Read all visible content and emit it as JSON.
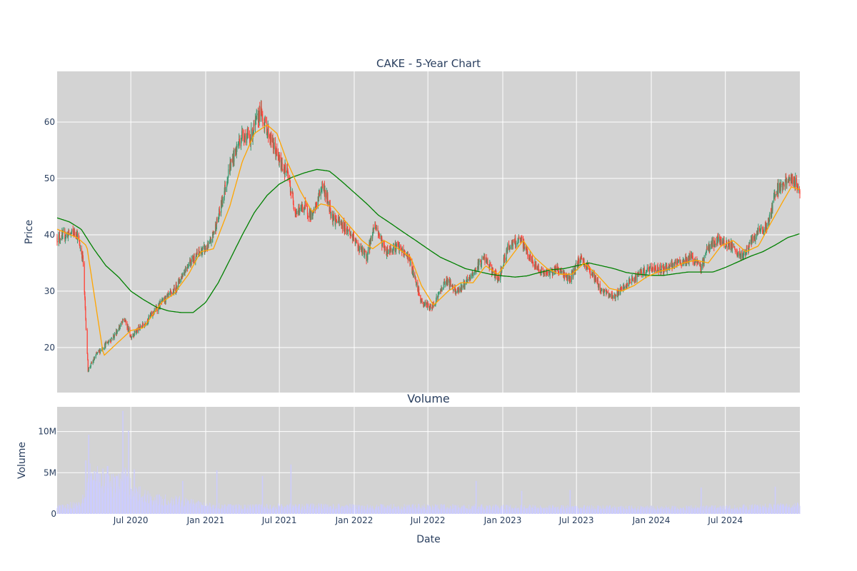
{
  "chart_data": {
    "type": "candlestick",
    "title": "CAKE - 5-Year Chart",
    "price_panel": {
      "ylabel": "Price",
      "ylim": [
        12,
        69
      ],
      "yticks": [
        {
          "label": "20",
          "value": 20
        },
        {
          "label": "30",
          "value": 30
        },
        {
          "label": "40",
          "value": 40
        },
        {
          "label": "50",
          "value": 50
        },
        {
          "label": "60",
          "value": 60
        }
      ],
      "grid": true,
      "background": "#d3d3d3",
      "series": [
        {
          "type": "candlestick",
          "increasing_color": "#3d9970",
          "decreasing_color": "#ff4136"
        },
        {
          "type": "line",
          "color": "#ffa500"
        },
        {
          "type": "line",
          "color": "#008000"
        }
      ],
      "close_anchors": [
        [
          "2020-01-02",
          39.5
        ],
        [
          "2020-02-18",
          40.5
        ],
        [
          "2020-03-05",
          36
        ],
        [
          "2020-03-18",
          16
        ],
        [
          "2020-04-10",
          19
        ],
        [
          "2020-05-20",
          22
        ],
        [
          "2020-06-15",
          25
        ],
        [
          "2020-07-01",
          22
        ],
        [
          "2020-08-01",
          24
        ],
        [
          "2020-09-15",
          28
        ],
        [
          "2020-10-15",
          30
        ],
        [
          "2020-11-20",
          35
        ],
        [
          "2020-12-20",
          37
        ],
        [
          "2021-01-10",
          38
        ],
        [
          "2021-02-01",
          43
        ],
        [
          "2021-03-01",
          52
        ],
        [
          "2021-04-01",
          58
        ],
        [
          "2021-04-20",
          57
        ],
        [
          "2021-05-15",
          62
        ],
        [
          "2021-06-15",
          56
        ],
        [
          "2021-07-01",
          53
        ],
        [
          "2021-07-20",
          51
        ],
        [
          "2021-08-10",
          44
        ],
        [
          "2021-09-01",
          45
        ],
        [
          "2021-09-20",
          43
        ],
        [
          "2021-10-15",
          49
        ],
        [
          "2021-11-10",
          43
        ],
        [
          "2021-12-15",
          41
        ],
        [
          "2022-01-10",
          38
        ],
        [
          "2022-02-01",
          36
        ],
        [
          "2022-02-20",
          42
        ],
        [
          "2022-03-20",
          37
        ],
        [
          "2022-04-15",
          38
        ],
        [
          "2022-05-15",
          36
        ],
        [
          "2022-06-15",
          28
        ],
        [
          "2022-07-10",
          27
        ],
        [
          "2022-08-15",
          32
        ],
        [
          "2022-09-10",
          30
        ],
        [
          "2022-10-10",
          32
        ],
        [
          "2022-11-15",
          36
        ],
        [
          "2022-12-20",
          32
        ],
        [
          "2023-01-15",
          38
        ],
        [
          "2023-02-15",
          39
        ],
        [
          "2023-03-15",
          35
        ],
        [
          "2023-04-15",
          33
        ],
        [
          "2023-05-15",
          34
        ],
        [
          "2023-06-15",
          32
        ],
        [
          "2023-07-10",
          36
        ],
        [
          "2023-08-10",
          33
        ],
        [
          "2023-09-01",
          30
        ],
        [
          "2023-10-01",
          29
        ],
        [
          "2023-11-01",
          31
        ],
        [
          "2023-12-01",
          33
        ],
        [
          "2024-01-01",
          34
        ],
        [
          "2024-02-01",
          34
        ],
        [
          "2024-03-10",
          35
        ],
        [
          "2024-04-10",
          36
        ],
        [
          "2024-05-01",
          34
        ],
        [
          "2024-05-20",
          38
        ],
        [
          "2024-06-15",
          39
        ],
        [
          "2024-07-15",
          38
        ],
        [
          "2024-08-05",
          36
        ],
        [
          "2024-08-20",
          37
        ],
        [
          "2024-09-15",
          40
        ],
        [
          "2024-10-15",
          42
        ],
        [
          "2024-11-01",
          48
        ],
        [
          "2024-11-20",
          49
        ],
        [
          "2024-12-10",
          50
        ],
        [
          "2024-12-31",
          48
        ]
      ],
      "ma50_anchors": [
        [
          "2020-01-02",
          41
        ],
        [
          "2020-02-20",
          39.5
        ],
        [
          "2020-03-15",
          38
        ],
        [
          "2020-04-25",
          18.5
        ],
        [
          "2020-06-01",
          21
        ],
        [
          "2020-07-01",
          23
        ],
        [
          "2020-08-01",
          23.5
        ],
        [
          "2020-09-15",
          28
        ],
        [
          "2020-10-15",
          29.5
        ],
        [
          "2020-11-20",
          33
        ],
        [
          "2020-12-20",
          37
        ],
        [
          "2021-01-20",
          37.5
        ],
        [
          "2021-03-01",
          45
        ],
        [
          "2021-04-01",
          53
        ],
        [
          "2021-05-01",
          58
        ],
        [
          "2021-06-01",
          59.5
        ],
        [
          "2021-06-25",
          58
        ],
        [
          "2021-07-20",
          53
        ],
        [
          "2021-08-20",
          48
        ],
        [
          "2021-09-20",
          44
        ],
        [
          "2021-10-10",
          45.5
        ],
        [
          "2021-11-10",
          45
        ],
        [
          "2021-12-15",
          42
        ],
        [
          "2022-01-20",
          39
        ],
        [
          "2022-02-15",
          37.5
        ],
        [
          "2022-03-15",
          39
        ],
        [
          "2022-04-20",
          37.5
        ],
        [
          "2022-05-20",
          36
        ],
        [
          "2022-06-15",
          31
        ],
        [
          "2022-07-15",
          27.5
        ],
        [
          "2022-08-20",
          30
        ],
        [
          "2022-09-20",
          31.5
        ],
        [
          "2022-10-20",
          31.5
        ],
        [
          "2022-11-20",
          34.5
        ],
        [
          "2022-12-20",
          33
        ],
        [
          "2023-01-20",
          36
        ],
        [
          "2023-02-20",
          39
        ],
        [
          "2023-03-20",
          36
        ],
        [
          "2023-04-20",
          34
        ],
        [
          "2023-05-20",
          33
        ],
        [
          "2023-06-20",
          33
        ],
        [
          "2023-07-20",
          35
        ],
        [
          "2023-08-20",
          33
        ],
        [
          "2023-09-20",
          30.5
        ],
        [
          "2023-10-20",
          30
        ],
        [
          "2023-11-20",
          31
        ],
        [
          "2023-12-20",
          32.5
        ],
        [
          "2024-01-20",
          33.5
        ],
        [
          "2024-02-20",
          34
        ],
        [
          "2024-03-20",
          35
        ],
        [
          "2024-04-20",
          35.5
        ],
        [
          "2024-05-20",
          35
        ],
        [
          "2024-06-20",
          38
        ],
        [
          "2024-07-20",
          39
        ],
        [
          "2024-08-20",
          37
        ],
        [
          "2024-09-20",
          38
        ],
        [
          "2024-10-20",
          42
        ],
        [
          "2024-11-20",
          46
        ],
        [
          "2024-12-10",
          48.5
        ],
        [
          "2024-12-31",
          48
        ]
      ],
      "ma200_anchors": [
        [
          "2020-01-02",
          43
        ],
        [
          "2020-02-01",
          42.3
        ],
        [
          "2020-03-01",
          41
        ],
        [
          "2020-04-01",
          37.5
        ],
        [
          "2020-05-01",
          34.5
        ],
        [
          "2020-06-01",
          32.5
        ],
        [
          "2020-07-01",
          30
        ],
        [
          "2020-08-01",
          28.5
        ],
        [
          "2020-09-01",
          27.2
        ],
        [
          "2020-10-01",
          26.5
        ],
        [
          "2020-11-01",
          26.2
        ],
        [
          "2020-12-01",
          26.2
        ],
        [
          "2021-01-01",
          28
        ],
        [
          "2021-02-01",
          31.5
        ],
        [
          "2021-03-01",
          35.5
        ],
        [
          "2021-04-01",
          40
        ],
        [
          "2021-05-01",
          44
        ],
        [
          "2021-06-01",
          47
        ],
        [
          "2021-07-01",
          49
        ],
        [
          "2021-08-01",
          50.2
        ],
        [
          "2021-09-01",
          51
        ],
        [
          "2021-10-01",
          51.6
        ],
        [
          "2021-11-01",
          51.3
        ],
        [
          "2021-12-01",
          49.5
        ],
        [
          "2022-01-01",
          47.5
        ],
        [
          "2022-02-01",
          45.5
        ],
        [
          "2022-03-01",
          43.5
        ],
        [
          "2022-04-01",
          42
        ],
        [
          "2022-05-01",
          40.5
        ],
        [
          "2022-06-01",
          39
        ],
        [
          "2022-07-01",
          37.5
        ],
        [
          "2022-08-01",
          36
        ],
        [
          "2022-09-01",
          35
        ],
        [
          "2022-10-01",
          34
        ],
        [
          "2022-11-01",
          33.5
        ],
        [
          "2022-12-01",
          33
        ],
        [
          "2023-01-01",
          32.7
        ],
        [
          "2023-02-01",
          32.5
        ],
        [
          "2023-03-01",
          32.7
        ],
        [
          "2023-04-01",
          33.3
        ],
        [
          "2023-05-01",
          33.8
        ],
        [
          "2023-06-01",
          34
        ],
        [
          "2023-07-01",
          34.5
        ],
        [
          "2023-08-01",
          35
        ],
        [
          "2023-09-01",
          34.5
        ],
        [
          "2023-10-01",
          34
        ],
        [
          "2023-11-01",
          33.3
        ],
        [
          "2023-12-01",
          33
        ],
        [
          "2024-01-01",
          32.8
        ],
        [
          "2024-02-01",
          32.8
        ],
        [
          "2024-03-01",
          33.1
        ],
        [
          "2024-04-01",
          33.4
        ],
        [
          "2024-05-01",
          33.4
        ],
        [
          "2024-06-01",
          33.4
        ],
        [
          "2024-07-01",
          34.2
        ],
        [
          "2024-08-01",
          35.2
        ],
        [
          "2024-09-01",
          36.2
        ],
        [
          "2024-10-01",
          37
        ],
        [
          "2024-11-01",
          38.2
        ],
        [
          "2024-12-01",
          39.5
        ],
        [
          "2024-12-31",
          40.2
        ]
      ]
    },
    "volume_panel": {
      "title": "Volume",
      "ylabel": "Volume",
      "ylim": [
        0,
        13000000
      ],
      "yticks": [
        {
          "label": "0",
          "value": 0
        },
        {
          "label": "5M",
          "value": 5000000
        },
        {
          "label": "10M",
          "value": 10000000
        }
      ],
      "grid": true,
      "background": "#d3d3d3",
      "bar_color": "#ccccff",
      "volume_anchors": [
        [
          "2020-01-02",
          800000
        ],
        [
          "2020-03-01",
          1200000
        ],
        [
          "2020-03-20",
          5000000
        ],
        [
          "2020-04-15",
          3800000
        ],
        [
          "2020-05-15",
          3500000
        ],
        [
          "2020-06-15",
          4000000
        ],
        [
          "2020-07-15",
          2500000
        ],
        [
          "2020-09-01",
          1700000
        ],
        [
          "2020-11-01",
          1500000
        ],
        [
          "2021-01-01",
          1000000
        ],
        [
          "2021-04-01",
          800000
        ],
        [
          "2021-07-01",
          900000
        ],
        [
          "2021-10-01",
          900000
        ],
        [
          "2022-01-01",
          850000
        ],
        [
          "2022-07-01",
          850000
        ],
        [
          "2023-01-01",
          800000
        ],
        [
          "2023-07-01",
          750000
        ],
        [
          "2024-01-01",
          700000
        ],
        [
          "2024-07-01",
          750000
        ],
        [
          "2024-12-31",
          1000000
        ]
      ],
      "volume_spikes": [
        [
          "2020-03-13",
          6500000
        ],
        [
          "2020-03-20",
          9600000
        ],
        [
          "2020-04-03",
          5200000
        ],
        [
          "2020-04-24",
          5500000
        ],
        [
          "2020-05-05",
          5800000
        ],
        [
          "2020-05-28",
          4600000
        ],
        [
          "2020-06-12",
          12500000
        ],
        [
          "2020-06-26",
          10100000
        ],
        [
          "2020-07-10",
          5400000
        ],
        [
          "2020-11-06",
          4000000
        ],
        [
          "2021-01-29",
          5300000
        ],
        [
          "2021-05-21",
          4600000
        ],
        [
          "2021-07-30",
          6000000
        ],
        [
          "2022-10-28",
          4000000
        ],
        [
          "2023-02-17",
          2800000
        ],
        [
          "2023-06-16",
          2900000
        ],
        [
          "2024-05-03",
          3200000
        ],
        [
          "2024-11-01",
          3300000
        ]
      ]
    },
    "x_axis": {
      "xlabel": "Date",
      "start": "2020-01-02",
      "end": "2024-12-31",
      "ticks": [
        {
          "label": "Jul 2020",
          "date": "2020-07-01"
        },
        {
          "label": "Jan 2021",
          "date": "2021-01-01"
        },
        {
          "label": "Jul 2021",
          "date": "2021-07-01"
        },
        {
          "label": "Jan 2022",
          "date": "2022-01-01"
        },
        {
          "label": "Jul 2022",
          "date": "2022-07-01"
        },
        {
          "label": "Jan 2023",
          "date": "2023-01-01"
        },
        {
          "label": "Jul 2023",
          "date": "2023-07-01"
        },
        {
          "label": "Jan 2024",
          "date": "2024-01-01"
        },
        {
          "label": "Jul 2024",
          "date": "2024-07-01"
        }
      ]
    }
  }
}
